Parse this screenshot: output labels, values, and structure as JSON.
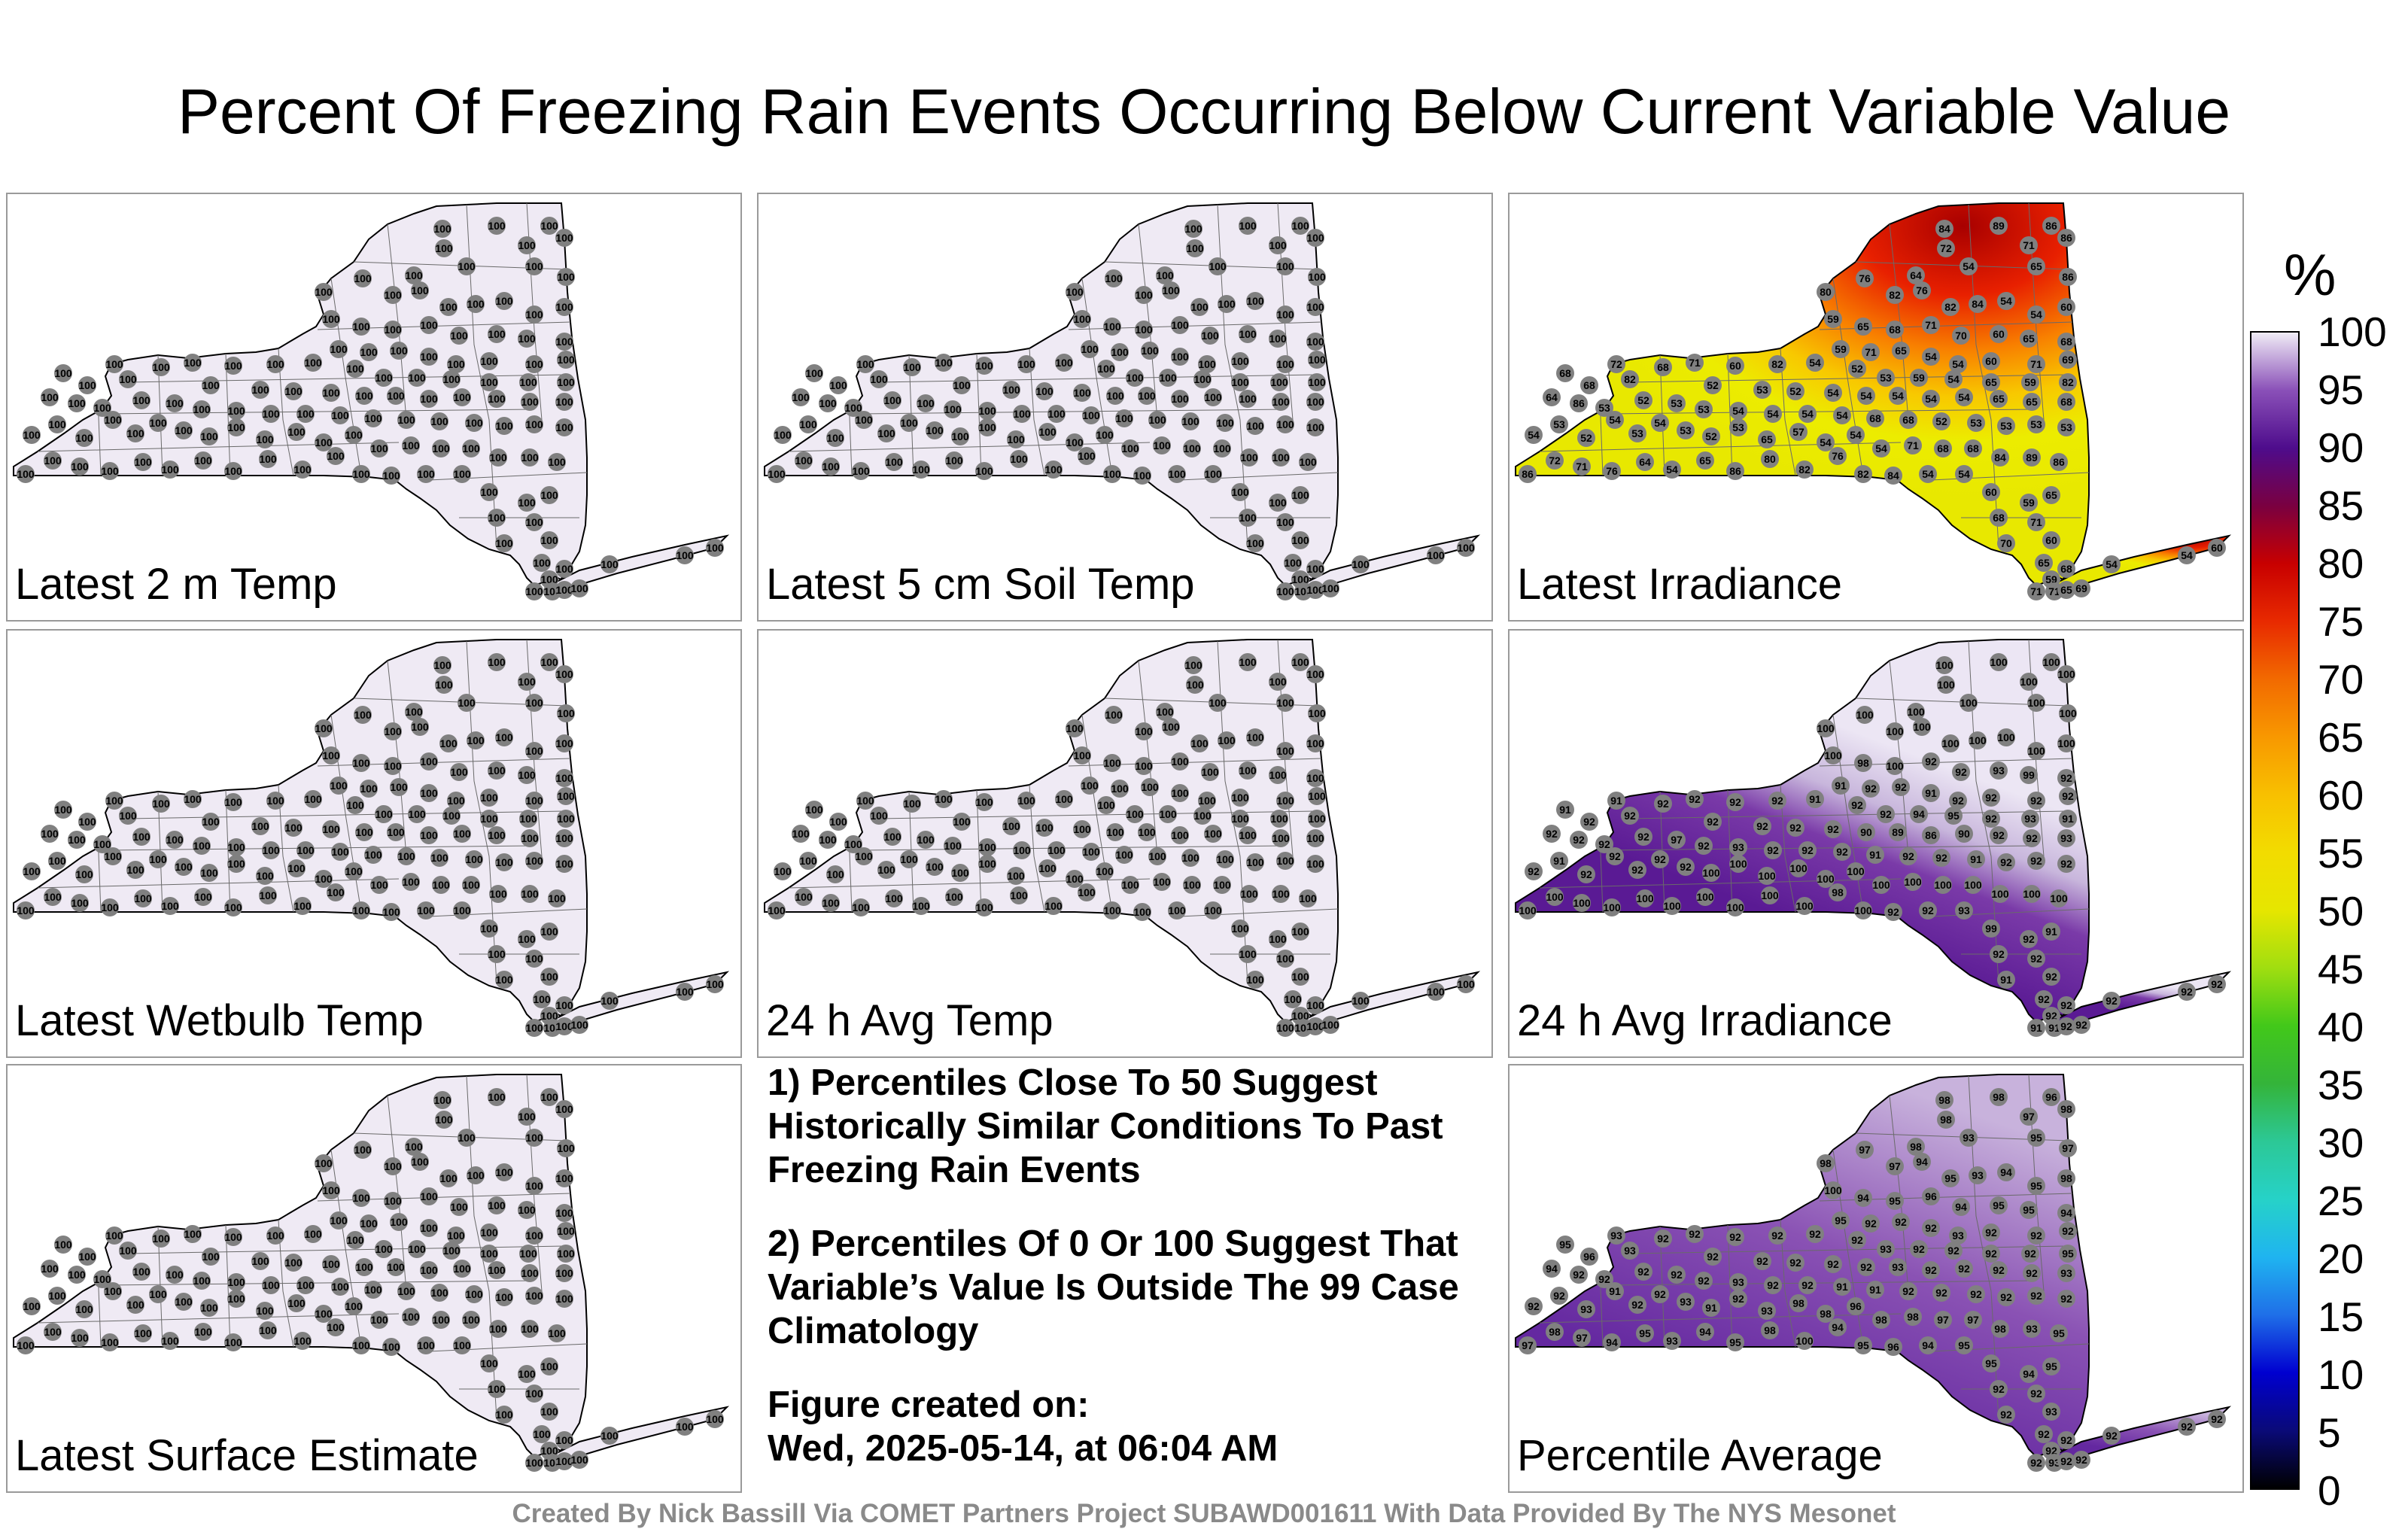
{
  "title": "Percent Of Freezing Rain Events Occurring Below Current Variable Value",
  "panels": [
    {
      "label": "Latest 2 m Temp",
      "scheme": "uniform100"
    },
    {
      "label": "Latest 5 cm Soil Temp",
      "scheme": "uniform100"
    },
    {
      "label": "Latest Irradiance",
      "scheme": "irradiance"
    },
    {
      "label": "Latest Wetbulb Temp",
      "scheme": "uniform100"
    },
    {
      "label": "24 h Avg Temp",
      "scheme": "uniform100"
    },
    {
      "label": "24 h Avg Irradiance",
      "scheme": "avgirr"
    },
    {
      "label": "Latest Surface Estimate",
      "scheme": "uniform100"
    },
    {
      "label": "Percentile Average",
      "scheme": "pctavg"
    }
  ],
  "notes": [
    "1) Percentiles Close To 50 Suggest Historically Similar Conditions To Past Freezing Rain Events",
    "2) Percentiles Of 0 Or 100 Suggest That Variable’s Value Is Outside The 99 Case Climatology",
    "Figure created on:\nWed, 2025-05-14, at 06:04 AM"
  ],
  "credit": "Created By Nick Bassill Via COMET Partners Project SUBAWD001611 With Data Provided By The NYS Mesonet",
  "colorbar": {
    "unit": "%",
    "ticks": [
      "0",
      "5",
      "10",
      "15",
      "20",
      "25",
      "30",
      "35",
      "40",
      "45",
      "50",
      "55",
      "60",
      "65",
      "70",
      "75",
      "80",
      "85",
      "90",
      "95",
      "100"
    ],
    "colors": [
      "#000000",
      "#0a0a78",
      "#0000d0",
      "#1f6fe8",
      "#1fb4f0",
      "#26d2c8",
      "#2cc896",
      "#34b43a",
      "#42c81a",
      "#a0de10",
      "#e6e600",
      "#f2dc00",
      "#f8c000",
      "#f89800",
      "#f26a00",
      "#e82a00",
      "#c80000",
      "#7a0040",
      "#4e0c8c",
      "#8a50b8",
      "#f0ecf6"
    ]
  },
  "station_values": {
    "uniform100": "100",
    "irradiance": [
      "84",
      "89",
      "86",
      "86",
      "72",
      "71",
      "76",
      "64",
      "54",
      "65",
      "86",
      "80",
      "82",
      "76",
      "82",
      "84",
      "54",
      "54",
      "60",
      "59",
      "65",
      "68",
      "71",
      "70",
      "60",
      "65",
      "68",
      "59",
      "71",
      "65",
      "54",
      "54",
      "60",
      "71",
      "69",
      "72",
      "68",
      "71",
      "60",
      "82",
      "54",
      "52",
      "53",
      "59",
      "54",
      "65",
      "59",
      "82",
      "68",
      "68",
      "82",
      "52",
      "53",
      "52",
      "54",
      "54",
      "54",
      "54",
      "54",
      "65",
      "65",
      "68",
      "64",
      "86",
      "53",
      "52",
      "53",
      "53",
      "54",
      "54",
      "54",
      "54",
      "68",
      "68",
      "52",
      "53",
      "53",
      "53",
      "53",
      "54",
      "53",
      "52",
      "54",
      "53",
      "54",
      "53",
      "52",
      "53",
      "65",
      "57",
      "54",
      "54",
      "54",
      "71",
      "68",
      "68"
    ],
    "avgirr": [
      "100",
      "100",
      "100",
      "100",
      "100",
      "100",
      "100",
      "100",
      "100",
      "100",
      "100",
      "100",
      "100",
      "100",
      "100",
      "100",
      "100",
      "100",
      "100",
      "100",
      "98",
      "100",
      "92",
      "92",
      "93",
      "99",
      "92",
      "91",
      "92",
      "92",
      "91",
      "92",
      "92",
      "92",
      "92",
      "91",
      "92",
      "92",
      "92",
      "92",
      "91",
      "92",
      "92",
      "94",
      "95",
      "92",
      "93",
      "91",
      "91",
      "92",
      "92",
      "92",
      "92",
      "92",
      "92",
      "90",
      "89",
      "86",
      "90",
      "92",
      "92",
      "93",
      "92",
      "92",
      "92",
      "92",
      "97",
      "92",
      "93",
      "92",
      "92",
      "92",
      "91",
      "92",
      "92",
      "91",
      "92",
      "92",
      "92",
      "92",
      "91",
      "92",
      "92",
      "92",
      "92",
      "92",
      "100",
      "100",
      "100"
    ],
    "pctavg": [
      "98",
      "98",
      "96",
      "98",
      "98",
      "97",
      "97",
      "98",
      "93",
      "95",
      "97",
      "98",
      "97",
      "94",
      "95",
      "93",
      "94",
      "95",
      "98",
      "100",
      "94",
      "95",
      "96",
      "94",
      "95",
      "95",
      "94",
      "95",
      "92",
      "92",
      "92",
      "93",
      "92",
      "92",
      "92",
      "93",
      "92",
      "92",
      "92",
      "92",
      "92",
      "92",
      "93",
      "92",
      "92",
      "92",
      "92",
      "95",
      "95",
      "96",
      "93",
      "92",
      "92",
      "92",
      "92",
      "92",
      "93",
      "92",
      "92",
      "92",
      "92",
      "93",
      "94",
      "92",
      "92",
      "92",
      "92",
      "92",
      "93",
      "92",
      "92",
      "91",
      "91",
      "92",
      "92",
      "92",
      "92",
      "92",
      "92",
      "92",
      "92",
      "93",
      "91",
      "92",
      "92",
      "93",
      "91",
      "92",
      "93"
    ]
  }
}
